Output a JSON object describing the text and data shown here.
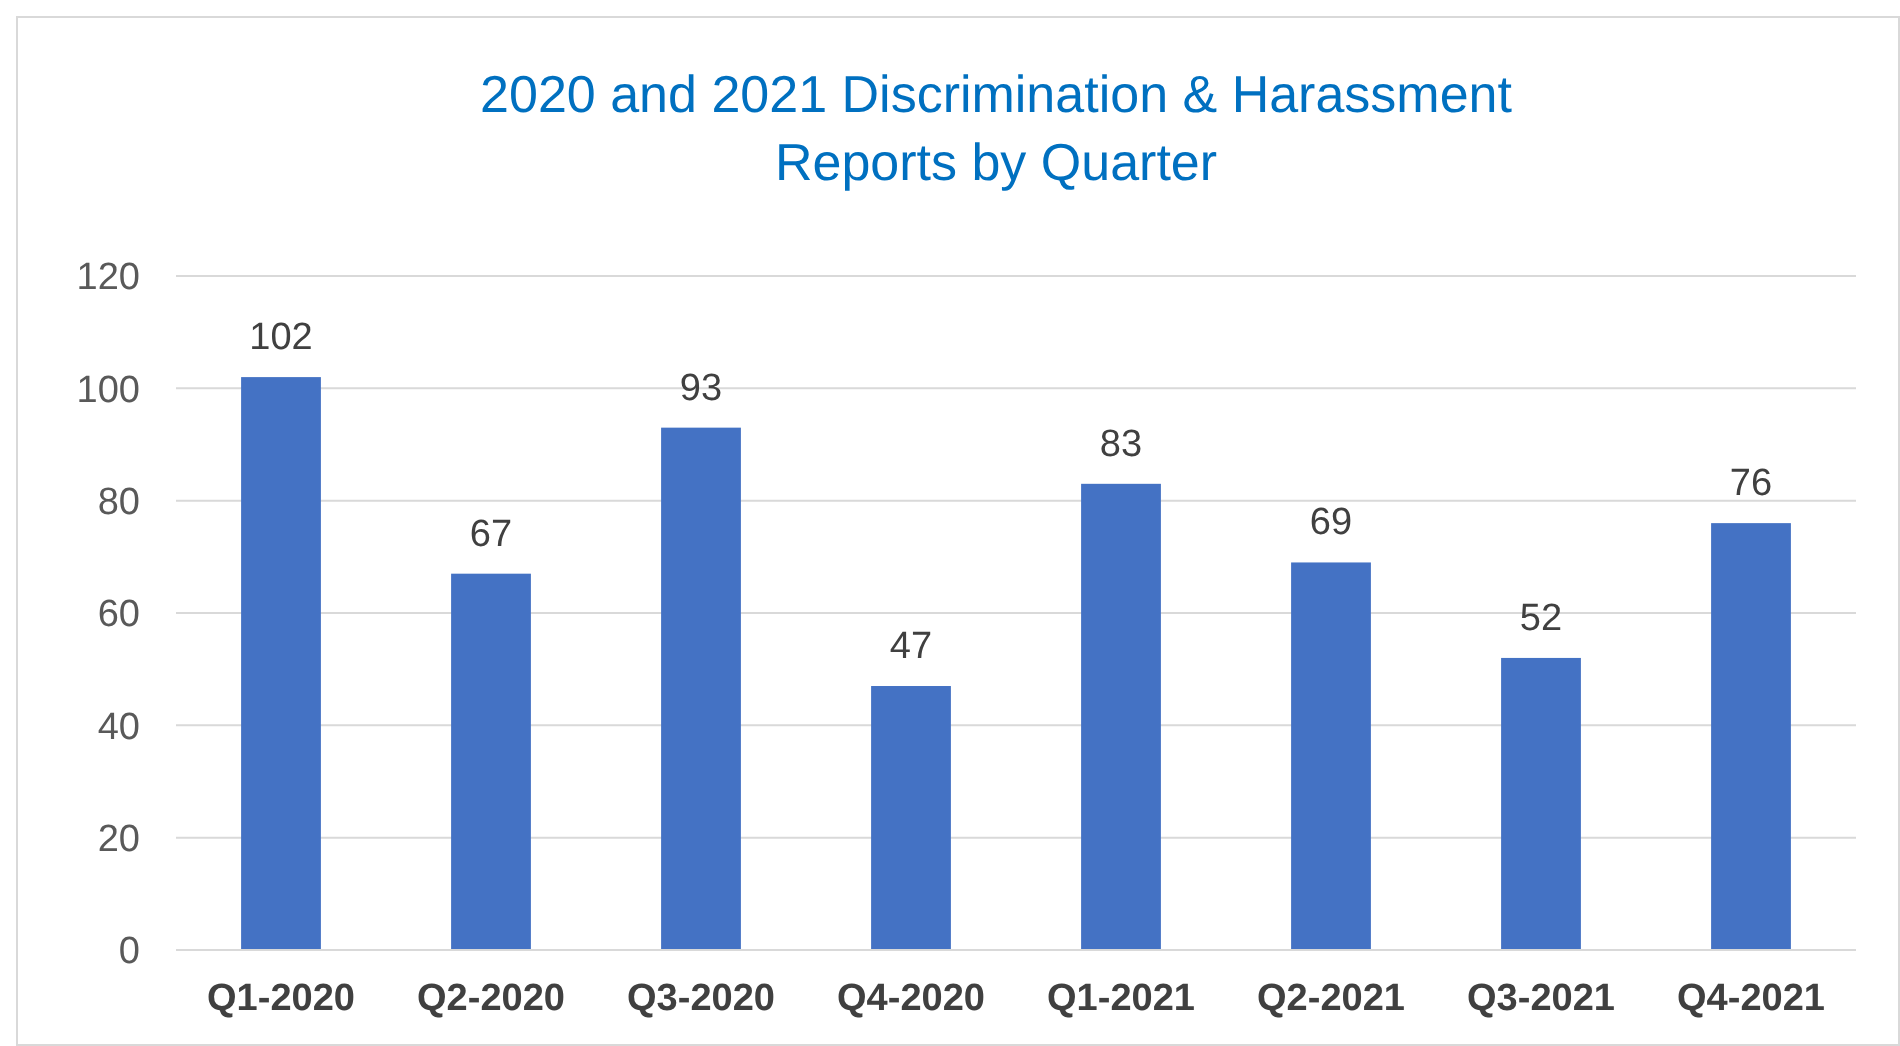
{
  "chart_data": {
    "type": "bar",
    "title": "2020 and 2021 Discrimination & Harassment Reports by Quarter",
    "categories": [
      "Q1-2020",
      "Q2-2020",
      "Q3-2020",
      "Q4-2020",
      "Q1-2021",
      "Q2-2021",
      "Q3-2021",
      "Q4-2021"
    ],
    "values": [
      102,
      67,
      93,
      47,
      83,
      69,
      52,
      76
    ],
    "color": "#4472c4",
    "ylim": [
      0,
      120
    ],
    "yticks": [
      0,
      20,
      40,
      60,
      80,
      100,
      120
    ],
    "grid": "y",
    "data_labels": true
  }
}
